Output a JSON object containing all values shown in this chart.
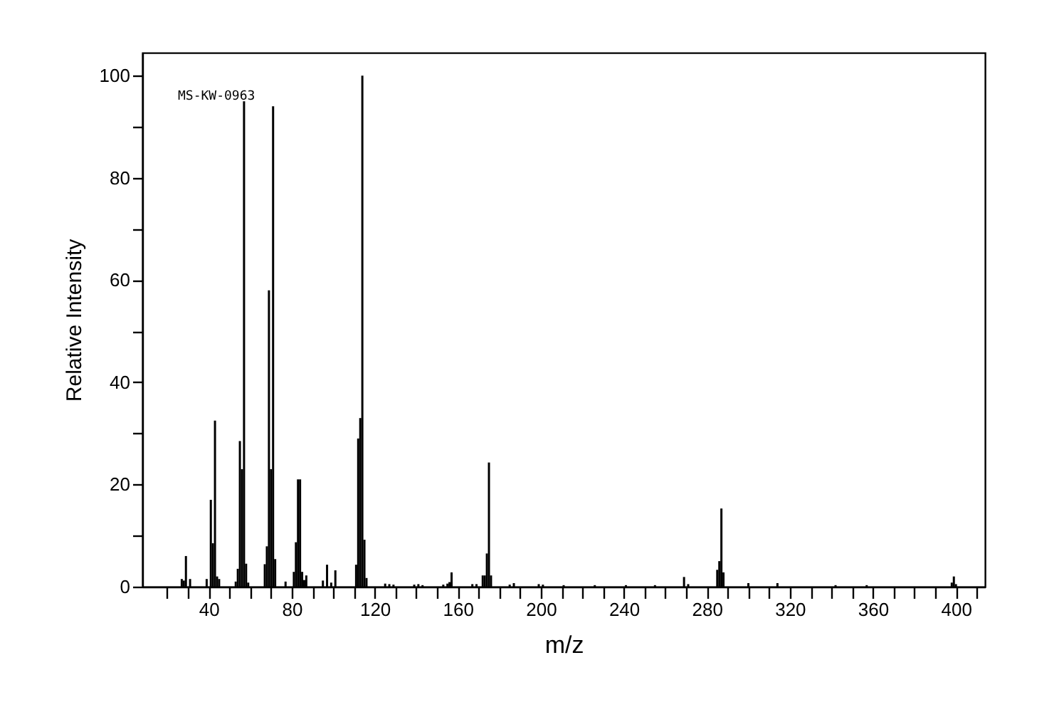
{
  "chart_data": {
    "type": "bar",
    "xlabel": "m/z",
    "ylabel": "Relative Intensity",
    "annotations": [
      "MS-KW-0963"
    ],
    "color": "#000000",
    "grid": false,
    "x": [
      27,
      28,
      29,
      31,
      39,
      41,
      42,
      43,
      44,
      45,
      53,
      54,
      55,
      56,
      57,
      58,
      59,
      67,
      68,
      69,
      70,
      71,
      72,
      77,
      81,
      82,
      83,
      84,
      85,
      86,
      87,
      95,
      97,
      99,
      101,
      111,
      112,
      113,
      114,
      115,
      116,
      125,
      127,
      129,
      139,
      141,
      143,
      153,
      155,
      156,
      157,
      167,
      169,
      172,
      173,
      174,
      175,
      176,
      185,
      187,
      199,
      201,
      211,
      226,
      241,
      255,
      269,
      271,
      285,
      286,
      287,
      288,
      300,
      314,
      342,
      357,
      398,
      399,
      400
    ],
    "values": [
      1.5,
      1.2,
      6,
      1.5,
      1.5,
      17,
      8.5,
      32.5,
      2,
      1.5,
      1,
      3.5,
      28.5,
      23,
      95,
      4.5,
      0.8,
      4.4,
      7.9,
      58,
      23,
      94,
      5.4,
      1,
      2.9,
      8.7,
      21,
      21,
      2.9,
      1.3,
      2.2,
      1.2,
      4.3,
      0.8,
      3.2,
      4.3,
      29,
      33,
      100,
      9.2,
      1.7,
      0.6,
      0.5,
      0.4,
      0.4,
      0.5,
      0.3,
      0.4,
      0.6,
      0.9,
      2.8,
      0.5,
      0.5,
      2.2,
      2.2,
      6.5,
      24.3,
      2.2,
      0.4,
      0.7,
      0.5,
      0.4,
      0.3,
      0.3,
      0.3,
      0.3,
      1.9,
      0.5,
      3.3,
      5,
      15.3,
      2.8,
      0.7,
      0.7,
      0.3,
      0.3,
      0.8,
      2,
      0.5
    ],
    "xlim": [
      8,
      414
    ],
    "xticks": [
      {
        "value": 20,
        "label": null
      },
      {
        "value": 30,
        "label": null
      },
      40,
      {
        "value": 50,
        "label": null
      },
      {
        "value": 60,
        "label": null
      },
      {
        "value": 70,
        "label": null
      },
      80,
      {
        "value": 90,
        "label": null
      },
      {
        "value": 100,
        "label": null
      },
      {
        "value": 110,
        "label": null
      },
      120,
      {
        "value": 130,
        "label": null
      },
      {
        "value": 140,
        "label": null
      },
      {
        "value": 150,
        "label": null
      },
      160,
      {
        "value": 170,
        "label": null
      },
      {
        "value": 180,
        "label": null
      },
      {
        "value": 190,
        "label": null
      },
      200,
      {
        "value": 210,
        "label": null
      },
      {
        "value": 220,
        "label": null
      },
      {
        "value": 230,
        "label": null
      },
      240,
      {
        "value": 250,
        "label": null
      },
      {
        "value": 260,
        "label": null
      },
      {
        "value": 270,
        "label": null
      },
      280,
      {
        "value": 290,
        "label": null
      },
      {
        "value": 300,
        "label": null
      },
      {
        "value": 310,
        "label": null
      },
      320,
      {
        "value": 330,
        "label": null
      },
      {
        "value": 340,
        "label": null
      },
      {
        "value": 350,
        "label": null
      },
      360,
      {
        "value": 370,
        "label": null
      },
      {
        "value": 380,
        "label": null
      },
      {
        "value": 390,
        "label": null
      },
      400,
      {
        "value": 410,
        "label": null
      }
    ],
    "ylim": [
      0,
      104.5
    ],
    "yticks": [
      0,
      {
        "value": 10,
        "label": null
      },
      20,
      {
        "value": 30,
        "label": null
      },
      40,
      {
        "value": 50,
        "label": null
      },
      60,
      {
        "value": 70,
        "label": null
      },
      80,
      {
        "value": 90,
        "label": null
      },
      100
    ]
  }
}
